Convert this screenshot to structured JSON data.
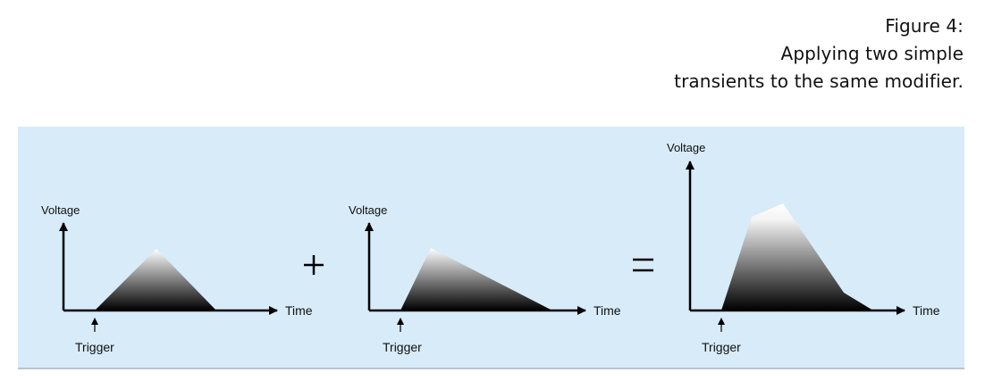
{
  "caption": {
    "line1": "Figure 4:",
    "line2": "Applying two simple",
    "line3": "transients to the same modifier."
  },
  "graphs": [
    {
      "voltage_label": "Voltage",
      "time_label": "Time",
      "trigger_label": "Trigger"
    },
    {
      "voltage_label": "Voltage",
      "time_label": "Time",
      "trigger_label": "Trigger"
    },
    {
      "voltage_label": "Voltage",
      "time_label": "Time",
      "trigger_label": "Trigger"
    }
  ],
  "operators": {
    "plus": "+",
    "equals": "="
  },
  "colors": {
    "panel_background": "#d7ebf8",
    "shape_top": "#ffffff",
    "shape_bottom": "#000000"
  }
}
